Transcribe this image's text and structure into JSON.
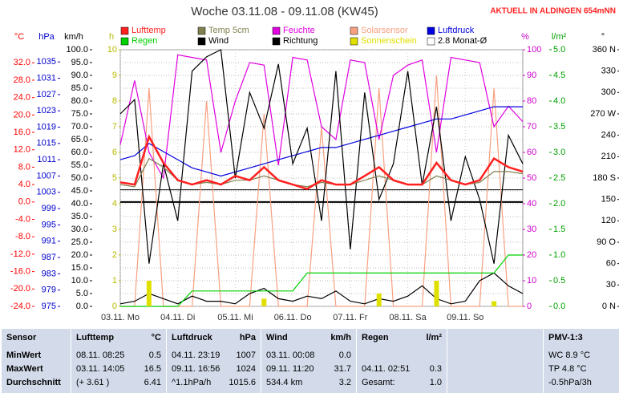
{
  "chart_data": {
    "type": "line",
    "title": "Woche 03.11.08 - 09.11.08 (KW45)",
    "note": "AKTUELL IN ALDINGEN 654mNN",
    "grid": true,
    "xlim": [
      0,
      7
    ],
    "xticks": [
      {
        "value": 0,
        "label": "03.11. Mo"
      },
      {
        "value": 1,
        "label": "04.11. Di"
      },
      {
        "value": 2,
        "label": "05.11. Mi"
      },
      {
        "value": 3,
        "label": "06.11. Do"
      },
      {
        "value": 4,
        "label": "07.11. Fr"
      },
      {
        "value": 5,
        "label": "08.11. Sa"
      },
      {
        "value": 6,
        "label": "09.11. So"
      }
    ],
    "axes": [
      {
        "label": "°C",
        "color": "#ff0000",
        "lim": [
          -24,
          35
        ],
        "ticks": [
          {
            "value": 32,
            "label": "32.0"
          },
          {
            "value": 28,
            "label": "28.0"
          },
          {
            "value": 24,
            "label": "24.0"
          },
          {
            "value": 20,
            "label": "20.0"
          },
          {
            "value": 16,
            "label": "16.0"
          },
          {
            "value": 12,
            "label": "12.0"
          },
          {
            "value": 8,
            "label": "8.0"
          },
          {
            "value": 4,
            "label": "4.0"
          },
          {
            "value": 0,
            "label": "0.0"
          },
          {
            "value": -4,
            "label": "-4.0"
          },
          {
            "value": -8,
            "label": "-8.0"
          },
          {
            "value": -12,
            "label": "-12.0"
          },
          {
            "value": -16,
            "label": "-16.0"
          },
          {
            "value": -20,
            "label": "-20.0"
          },
          {
            "value": -24,
            "label": "-24.0"
          }
        ]
      },
      {
        "label": "hPa",
        "color": "#0000cc",
        "lim": [
          975,
          1038
        ],
        "ticks": [
          1035,
          1031,
          1027,
          1023,
          1019,
          1015,
          1011,
          1007,
          1003,
          999,
          995,
          991,
          987,
          983,
          979,
          975
        ]
      },
      {
        "label": "km/h",
        "color": "#000000",
        "lim": [
          0,
          100
        ],
        "ticks": [
          {
            "value": 100,
            "label": "100.0"
          },
          {
            "value": 95,
            "label": "95.0"
          },
          {
            "value": 90,
            "label": "90.0"
          },
          {
            "value": 85,
            "label": "85.0"
          },
          {
            "value": 80,
            "label": "80.0"
          },
          {
            "value": 75,
            "label": "75.0"
          },
          {
            "value": 70,
            "label": "70.0"
          },
          {
            "value": 65,
            "label": "65.0"
          },
          {
            "value": 60,
            "label": "60.0"
          },
          {
            "value": 55,
            "label": "55.0"
          },
          {
            "value": 50,
            "label": "50.0"
          },
          {
            "value": 45,
            "label": "45.0"
          },
          {
            "value": 40,
            "label": "40.0"
          },
          {
            "value": 35,
            "label": "35.0"
          },
          {
            "value": 30,
            "label": "30.0"
          },
          {
            "value": 25,
            "label": "25.0"
          },
          {
            "value": 20,
            "label": "20.0"
          },
          {
            "value": 15,
            "label": "15.0"
          },
          {
            "value": 10,
            "label": "10.0"
          },
          {
            "value": 5,
            "label": "5.0"
          },
          {
            "value": 0,
            "label": "0.0"
          }
        ]
      },
      {
        "label": "h",
        "color": "#b8b800",
        "lim": [
          0,
          10
        ],
        "ticks": [
          10,
          9,
          8,
          7,
          6,
          5,
          4,
          3,
          2,
          1,
          0
        ]
      },
      {
        "label": "%",
        "color": "#cc00cc",
        "lim": [
          0,
          100
        ],
        "ticks": [
          100,
          90,
          80,
          70,
          60,
          50,
          40,
          30,
          20,
          10,
          0
        ]
      },
      {
        "label": "l/m²",
        "color": "#00a000",
        "lim": [
          0,
          5
        ],
        "ticks": [
          {
            "value": 5,
            "label": "5.0"
          },
          {
            "value": 4.5,
            "label": "4.5"
          },
          {
            "value": 4,
            "label": "4.0"
          },
          {
            "value": 3.5,
            "label": "3.5"
          },
          {
            "value": 3,
            "label": "3.0"
          },
          {
            "value": 2.5,
            "label": "2.5"
          },
          {
            "value": 2,
            "label": "2.0"
          },
          {
            "value": 1.5,
            "label": "1.5"
          },
          {
            "value": 1,
            "label": "1.0"
          },
          {
            "value": 0.5,
            "label": "0.5"
          },
          {
            "value": 0,
            "label": "0.0"
          }
        ]
      },
      {
        "label": "°",
        "color": "#000000",
        "lim": [
          0,
          360
        ],
        "ticks": [
          {
            "value": 360,
            "label": "360 N"
          },
          330,
          300,
          {
            "value": 270,
            "label": "270 W"
          },
          240,
          210,
          {
            "value": 180,
            "label": "180 S"
          },
          150,
          120,
          {
            "value": 90,
            "label": "90 O"
          },
          60,
          30,
          {
            "value": 0,
            "label": "0 N"
          }
        ]
      }
    ],
    "x": [
      0,
      0.25,
      0.5,
      0.75,
      1,
      1.25,
      1.5,
      1.75,
      2,
      2.25,
      2.5,
      2.75,
      3,
      3.25,
      3.5,
      3.75,
      4,
      4.25,
      4.5,
      4.75,
      5,
      5.25,
      5.5,
      5.75,
      6,
      6.25,
      6.5,
      6.75,
      7
    ],
    "series": [
      {
        "name": "Lufttemp",
        "color": "#ff2020",
        "axis": 0,
        "values": [
          4.5,
          4,
          15,
          9,
          5,
          4,
          5,
          4,
          6,
          5,
          8,
          5,
          4,
          3,
          5,
          4,
          4,
          6,
          8,
          5,
          4,
          4,
          9,
          5,
          4,
          5,
          10,
          8,
          7
        ]
      },
      {
        "name": "Temp 5cm",
        "color": "#808050",
        "axis": 0,
        "values": [
          4,
          3.5,
          10,
          8,
          5,
          4,
          4.5,
          4,
          5,
          5,
          6,
          5,
          4,
          3.5,
          4.5,
          4,
          4,
          5,
          6,
          5,
          4,
          4,
          6,
          5,
          4,
          4.5,
          7,
          7,
          6.5
        ]
      },
      {
        "name": "Feuchte",
        "color": "#e000e0",
        "axis": 4,
        "values": [
          63,
          88,
          60,
          50,
          98,
          97,
          96,
          60,
          80,
          95,
          94,
          55,
          97,
          96,
          70,
          65,
          96,
          95,
          65,
          90,
          94,
          96,
          60,
          97,
          96,
          95,
          70,
          78,
          72
        ]
      },
      {
        "name": "Solarsensor",
        "color": "#f8a080",
        "axis": 4,
        "values": [
          0,
          0,
          85,
          0,
          0,
          0,
          80,
          0,
          0,
          0,
          75,
          0,
          0,
          0,
          70,
          0,
          0,
          0,
          85,
          0,
          0,
          0,
          90,
          0,
          0,
          0,
          85,
          0,
          0
        ]
      },
      {
        "name": "Luftdruck",
        "color": "#0000e0",
        "axis": 1,
        "values": [
          1011,
          1012,
          1015,
          1013,
          1011,
          1009,
          1008,
          1007,
          1008,
          1009,
          1010,
          1011,
          1012,
          1013,
          1014,
          1014,
          1015,
          1016,
          1017,
          1018,
          1019,
          1020,
          1021,
          1021,
          1022,
          1023,
          1024,
          1024,
          1024
        ]
      },
      {
        "name": "Regen",
        "color": "#00d000",
        "axis": 5,
        "values": [
          0,
          0,
          0,
          0,
          0,
          0.3,
          0.3,
          0.3,
          0.3,
          0.3,
          0.3,
          0.3,
          0.3,
          0.65,
          0.65,
          0.65,
          0.65,
          0.65,
          0.65,
          0.65,
          0.65,
          0.65,
          0.65,
          0.65,
          0.65,
          0.65,
          0.65,
          1.0,
          1.0
        ]
      },
      {
        "name": "Wind",
        "color": "#000000",
        "axis": 2,
        "values": [
          1,
          2,
          5,
          3,
          1,
          4,
          2,
          2,
          1,
          5,
          7,
          3,
          2,
          4,
          3,
          6,
          2,
          1,
          3,
          2,
          4,
          8,
          3,
          1,
          2,
          10,
          13,
          8,
          5
        ]
      },
      {
        "name": "Richtung",
        "color": "#000000",
        "axis": 6,
        "values": [
          270,
          290,
          60,
          200,
          120,
          330,
          350,
          360,
          180,
          300,
          250,
          340,
          200,
          250,
          120,
          330,
          80,
          300,
          150,
          200,
          330,
          170,
          280,
          120,
          210,
          150,
          60,
          240,
          200
        ]
      },
      {
        "name": "Sonnenschein",
        "color": "#e0e000",
        "axis": 3,
        "type": "bar",
        "values": [
          0,
          0,
          1.0,
          0,
          0,
          0,
          0,
          0,
          0,
          0,
          0.3,
          0,
          0,
          0,
          0,
          0,
          0,
          0,
          0.5,
          0,
          0,
          0,
          1.0,
          0,
          0,
          0,
          0.2,
          0,
          0
        ]
      }
    ],
    "reference": {
      "name": "2.8 Monat-Ø",
      "value": 2.8,
      "axis": 0,
      "color": "#000000"
    }
  },
  "table": {
    "columns": [
      {
        "header": [
          "Sensor"
        ],
        "rows": [
          [
            "MinWert"
          ],
          [
            "MaxWert"
          ],
          [
            "Durchschnitt"
          ]
        ]
      },
      {
        "header": [
          "Lufttemp",
          "°C"
        ],
        "rows": [
          [
            "08.11.  08:25",
            "0.5"
          ],
          [
            "03.11.  14:05",
            "16.5"
          ],
          [
            "(+ 3.61 )",
            "6.41"
          ]
        ]
      },
      {
        "header": [
          "Luftdruck",
          "hPa"
        ],
        "rows": [
          [
            "04.11.  23:19",
            "1007"
          ],
          [
            "09.11.  16:56",
            "1024"
          ],
          [
            "^1.1hPa/h",
            "1015.6"
          ]
        ]
      },
      {
        "header": [
          "Wind",
          "km/h"
        ],
        "rows": [
          [
            "03.11.  00:08",
            "0.0"
          ],
          [
            "09.11.  11:20",
            "31.7"
          ],
          [
            "534.4 km",
            "3.2"
          ]
        ]
      },
      {
        "header": [
          "Regen",
          "l/m²"
        ],
        "rows": [
          null,
          [
            "04.11.  02:51",
            "0.3"
          ],
          [
            "Gesamt:",
            "1.0"
          ]
        ]
      },
      {
        "header": null,
        "rows": []
      },
      {
        "header": [
          "PMV-1:3"
        ],
        "rows": [
          [
            "WC 8.9 °C"
          ],
          [
            "TP 4.8 °C"
          ],
          [
            "-0.5hPa/3h"
          ]
        ]
      }
    ]
  }
}
